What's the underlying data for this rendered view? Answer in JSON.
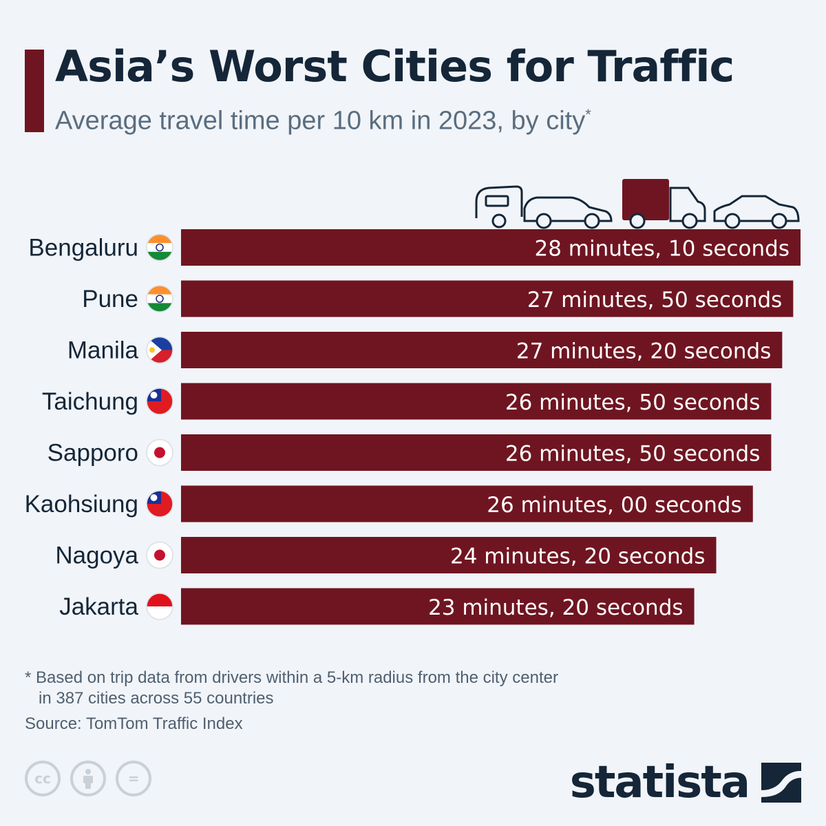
{
  "header": {
    "title": "Asia’s Worst Cities for Traffic",
    "subtitle": "Average travel time per 10 km in 2023, by city",
    "subtitle_marker": "*"
  },
  "colors": {
    "bar": "#6f1521",
    "title": "#142638",
    "subtitle": "#5a6d80",
    "background": "#f1f4f8"
  },
  "decoration": {
    "vehicle_icons": [
      "van-icon",
      "car-icon",
      "truck-icon",
      "car-icon"
    ]
  },
  "chart_data": {
    "type": "bar",
    "orientation": "horizontal",
    "categories": [
      "Bengaluru",
      "Pune",
      "Manila",
      "Taichung",
      "Sapporo",
      "Kaohsiung",
      "Nagoya",
      "Jakarta"
    ],
    "values_seconds": [
      1690,
      1670,
      1640,
      1610,
      1610,
      1560,
      1460,
      1400
    ],
    "labels": [
      "28 minutes, 10 seconds",
      "27 minutes, 50 seconds",
      "27 minutes, 20 seconds",
      "26 minutes, 50 seconds",
      "26 minutes, 50 seconds",
      "26 minutes, 00 seconds",
      "24 minutes, 20 seconds",
      "23 minutes, 20 seconds"
    ],
    "flags": [
      "india-flag-icon",
      "india-flag-icon",
      "philippines-flag-icon",
      "taiwan-flag-icon",
      "japan-flag-icon",
      "taiwan-flag-icon",
      "japan-flag-icon",
      "indonesia-flag-icon"
    ],
    "xlim": [
      0,
      1690
    ]
  },
  "footer": {
    "note_line1": "* Based on trip data from drivers within a 5-km radius from the city center",
    "note_line2": "in 387 cities across 55 countries",
    "source": "Source: TomTom Traffic Index",
    "license_icons": [
      "cc-icon",
      "attribution-icon",
      "no-derivatives-icon"
    ],
    "license_cc_text": "cc",
    "license_nd_text": "=",
    "brand": "statista"
  }
}
